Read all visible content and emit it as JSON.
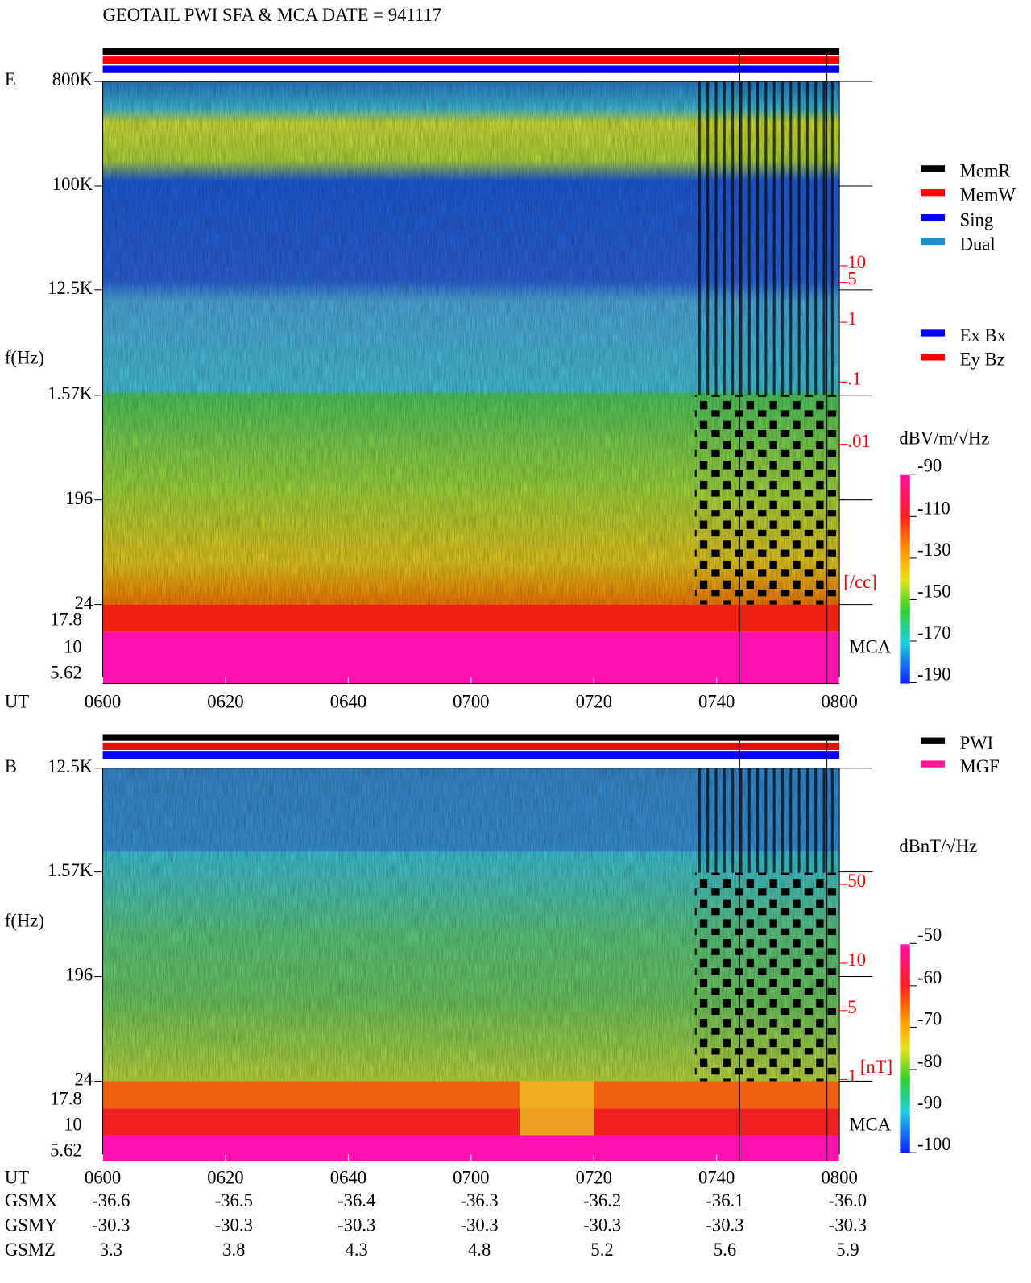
{
  "header": {
    "title": "GEOTAIL  PWI SFA & MCA   DATE = 941117"
  },
  "panels": [
    {
      "label": "E",
      "y_axis_label": "f(Hz)",
      "freq_ticks": [
        "800K",
        "100K",
        "12.5K",
        "1.57K",
        "196",
        "24"
      ],
      "mca_ticks": [
        "17.8",
        "10",
        "5.62"
      ],
      "mca_label": "MCA",
      "time_axis_label": "UT",
      "time_ticks": [
        "0600",
        "0620",
        "0640",
        "0700",
        "0720",
        "0740",
        "0800"
      ],
      "density_ticks": [
        "10",
        "5",
        "1",
        ".1",
        ".01"
      ],
      "density_unit": "[/cc]",
      "colorbar_unit": "dBV/m/√Hz",
      "colorbar_ticks": [
        "-90",
        "-110",
        "-130",
        "-150",
        "-170",
        "-190"
      ]
    },
    {
      "label": "B",
      "y_axis_label": "f(Hz)",
      "freq_ticks": [
        "12.5K",
        "1.57K",
        "196",
        "24"
      ],
      "mca_ticks": [
        "17.8",
        "10",
        "5.62"
      ],
      "mca_label": "MCA",
      "time_axis_label": "UT",
      "time_ticks": [
        "0600",
        "0620",
        "0640",
        "0700",
        "0720",
        "0740",
        "0800"
      ],
      "density_ticks": [
        "50",
        "10",
        "5",
        "1"
      ],
      "density_unit": "[nT]",
      "colorbar_unit": "dBnT/√Hz",
      "colorbar_ticks": [
        "-50",
        "-60",
        "-70",
        "-80",
        "-90",
        "-100"
      ]
    }
  ],
  "legends": {
    "mode": [
      {
        "label": "MemR",
        "color": "#000000"
      },
      {
        "label": "MemW",
        "color": "#ff0000"
      },
      {
        "label": "Sing",
        "color": "#0000ff"
      },
      {
        "label": "Dual",
        "color": "#1e8cc8"
      }
    ],
    "component": [
      {
        "label": "Ex Bx",
        "color": "#0000ff"
      },
      {
        "label": "Ey Bz",
        "color": "#ff0000"
      }
    ],
    "instrument": [
      {
        "label": "PWI",
        "color": "#000000"
      },
      {
        "label": "MGF",
        "color": "#ff1493"
      }
    ]
  },
  "orbit": {
    "rows": [
      {
        "label": "GSMX",
        "values": [
          "-36.6",
          "-36.5",
          "-36.4",
          "-36.3",
          "-36.2",
          "-36.1",
          "-36.0"
        ]
      },
      {
        "label": "GSMY",
        "values": [
          "-30.3",
          "-30.3",
          "-30.3",
          "-30.3",
          "-30.3",
          "-30.3",
          "-30.3"
        ]
      },
      {
        "label": "GSMZ",
        "values": [
          "3.3",
          "3.8",
          "4.3",
          "4.8",
          "5.2",
          "5.6",
          "5.9"
        ]
      }
    ]
  }
}
